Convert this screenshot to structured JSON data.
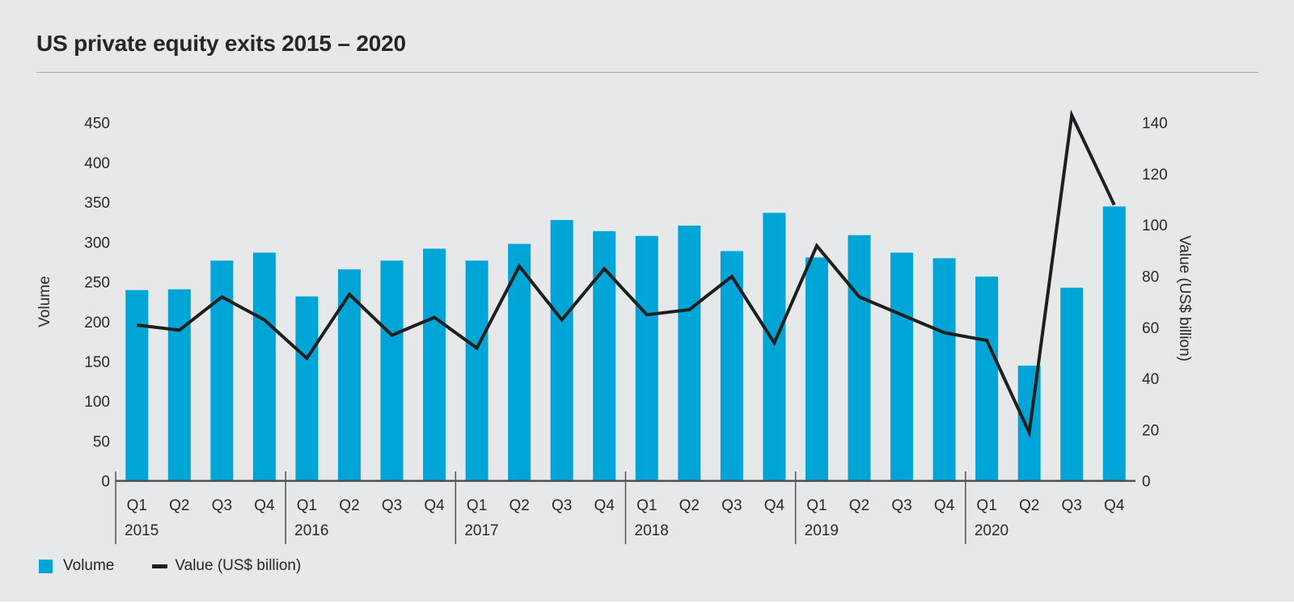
{
  "page": {
    "title": "US private equity exits 2015 – 2020"
  },
  "legend": {
    "volume_label": "Volume",
    "value_label": "Value (US$ billion)"
  },
  "colors": {
    "background": "#e7e8e9",
    "bar": "#00a5d8",
    "line": "#1e1e1c",
    "text": "#2a2a2c",
    "axis_line": "#515257",
    "title_rule": "#a9a9ab"
  },
  "chart_data": {
    "type": "combo: bar (left axis) + line (right axis)",
    "title": "US private equity exits 2015 – 2020",
    "years": [
      "2015",
      "2016",
      "2017",
      "2018",
      "2019",
      "2020"
    ],
    "quarters": [
      "Q1",
      "Q2",
      "Q3",
      "Q4"
    ],
    "categories": [
      "2015 Q1",
      "2015 Q2",
      "2015 Q3",
      "2015 Q4",
      "2016 Q1",
      "2016 Q2",
      "2016 Q3",
      "2016 Q4",
      "2017 Q1",
      "2017 Q2",
      "2017 Q3",
      "2017 Q4",
      "2018 Q1",
      "2018 Q2",
      "2018 Q3",
      "2018 Q4",
      "2019 Q1",
      "2019 Q2",
      "2019 Q3",
      "2019 Q4",
      "2020 Q1",
      "2020 Q2",
      "2020 Q3",
      "2020 Q4"
    ],
    "series": [
      {
        "name": "Volume",
        "type": "bar",
        "axis": "left",
        "values": [
          240,
          241,
          277,
          287,
          232,
          266,
          277,
          292,
          277,
          298,
          328,
          314,
          308,
          321,
          289,
          337,
          281,
          309,
          287,
          280,
          257,
          145,
          243,
          345
        ]
      },
      {
        "name": "Value (US$ billion)",
        "type": "line",
        "axis": "right",
        "values": [
          61,
          59,
          72,
          63,
          48,
          73,
          57,
          64,
          52,
          84,
          63,
          83,
          65,
          67,
          80,
          54,
          92,
          72,
          65,
          58,
          55,
          19,
          143,
          108
        ]
      }
    ],
    "axes": {
      "left": {
        "label": "Volume",
        "min": 0,
        "max": 450,
        "tick_step": 50,
        "ticks": [
          450,
          400,
          350,
          300,
          250,
          200,
          150,
          100,
          50,
          0
        ]
      },
      "right": {
        "label": "Value (US$ billion)",
        "min": 0,
        "max": 140,
        "tick_step": 20,
        "ticks": [
          140,
          120,
          100,
          80,
          60,
          40,
          20,
          0
        ]
      }
    },
    "grid": false,
    "legend_position": "bottom-left"
  }
}
